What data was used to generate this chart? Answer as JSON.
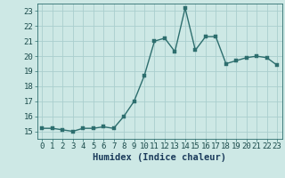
{
  "x": [
    0,
    1,
    2,
    3,
    4,
    5,
    6,
    7,
    8,
    9,
    10,
    11,
    12,
    13,
    14,
    15,
    16,
    17,
    18,
    19,
    20,
    21,
    22,
    23
  ],
  "y": [
    15.2,
    15.2,
    15.1,
    15.0,
    15.2,
    15.2,
    15.3,
    15.2,
    16.0,
    17.0,
    18.7,
    21.0,
    21.2,
    20.3,
    23.2,
    20.4,
    21.3,
    21.3,
    19.5,
    19.7,
    19.9,
    20.0,
    19.9,
    19.4
  ],
  "xlim": [
    -0.5,
    23.5
  ],
  "ylim": [
    14.5,
    23.5
  ],
  "yticks": [
    15,
    16,
    17,
    18,
    19,
    20,
    21,
    22,
    23
  ],
  "xticks": [
    0,
    1,
    2,
    3,
    4,
    5,
    6,
    7,
    8,
    9,
    10,
    11,
    12,
    13,
    14,
    15,
    16,
    17,
    18,
    19,
    20,
    21,
    22,
    23
  ],
  "xlabel": "Humidex (Indice chaleur)",
  "bg_color": "#cde8e5",
  "grid_color": "#aacece",
  "line_color": "#2d6e6e",
  "marker_color": "#2d6e6e",
  "xlabel_fontsize": 7.5,
  "tick_fontsize": 6.5,
  "line_width": 1.0,
  "marker_size": 2.5
}
